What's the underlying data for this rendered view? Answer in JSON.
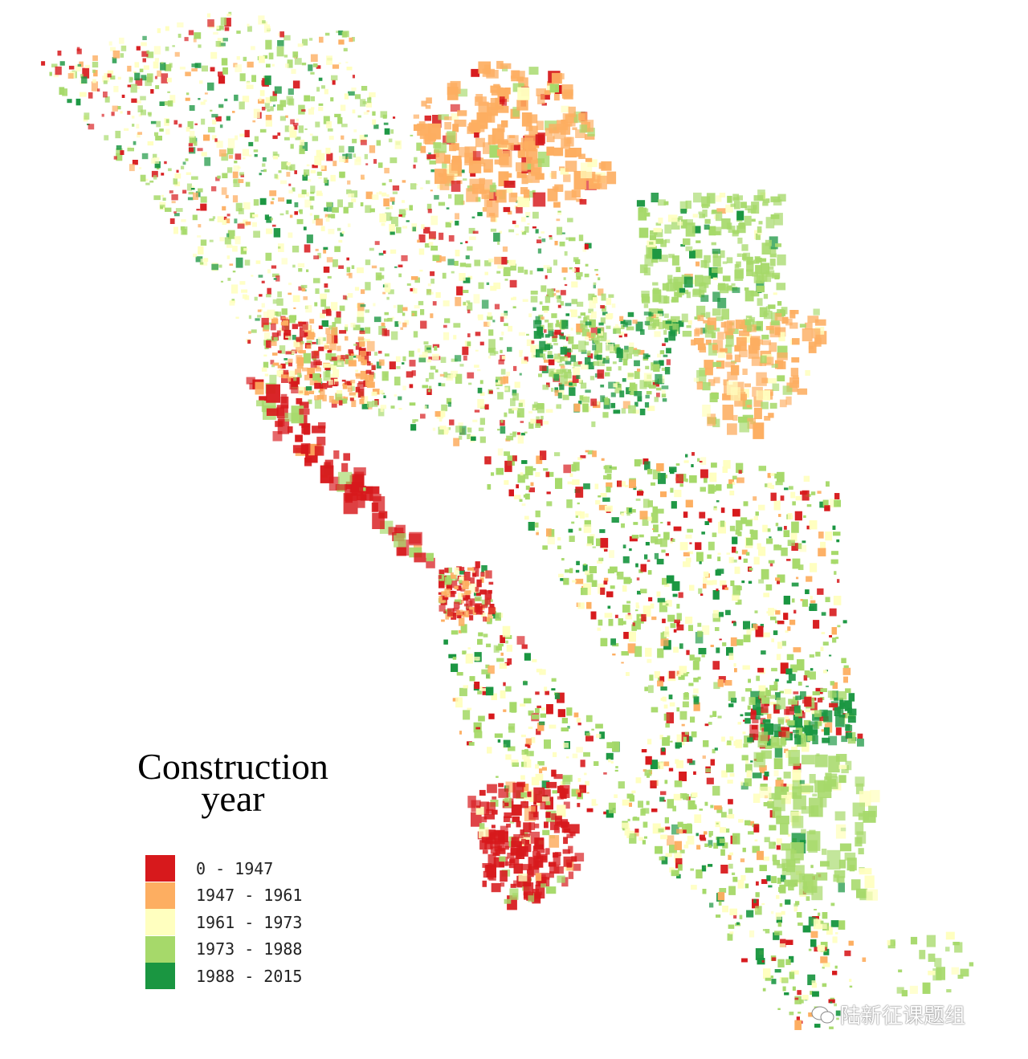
{
  "legend": {
    "title": "Construction year",
    "items": [
      {
        "label": "0 - 1947",
        "color": "#d7191c"
      },
      {
        "label": "1947 - 1961",
        "color": "#fdae61"
      },
      {
        "label": "1961 - 1973",
        "color": "#ffffbf"
      },
      {
        "label": "1973 - 1988",
        "color": "#a6d96a"
      },
      {
        "label": "1988 - 2015",
        "color": "#1a9641"
      }
    ]
  },
  "watermark": "陆新征课题组"
}
